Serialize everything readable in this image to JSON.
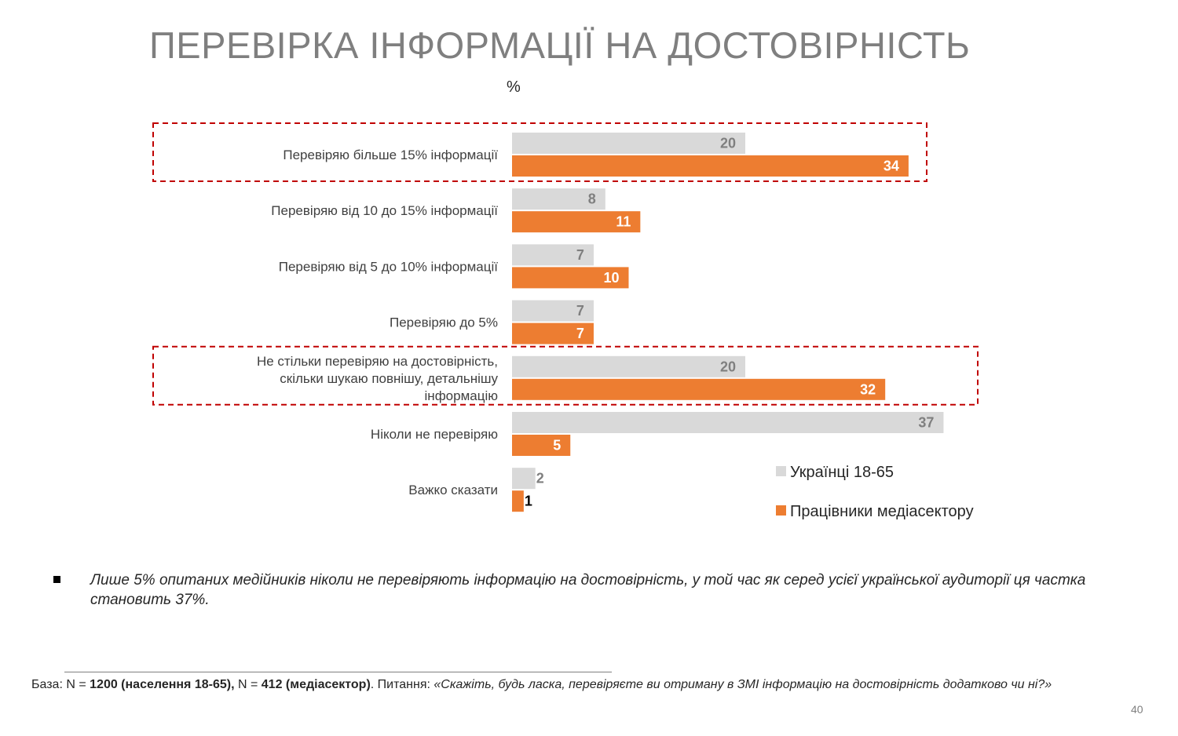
{
  "title": "ПЕРЕВІРКА ІНФОРМАЦІЇ НА ДОСТОВІРНІСТЬ",
  "unit": "%",
  "chart_data": {
    "type": "bar",
    "orientation": "horizontal",
    "categories": [
      [
        "Перевіряю більше 15% інформації"
      ],
      [
        "Перевіряю від 10 до 15% інформації"
      ],
      [
        "Перевіряю від 5 до 10% інформації"
      ],
      [
        "Перевіряю до 5%"
      ],
      [
        "Не стільки перевіряю на достовірність,",
        "скільки шукаю повнішу, детальнішу",
        "інформацію"
      ],
      [
        "Ніколи не перевіряю"
      ],
      [
        "Важко сказати"
      ]
    ],
    "series": [
      {
        "name": "Українці 18-65",
        "values": [
          20,
          8,
          7,
          7,
          20,
          37,
          2
        ],
        "color": "#d9d9d9",
        "label_color": "#7f7f7f"
      },
      {
        "name": "Працівники медіасектору",
        "values": [
          34,
          11,
          10,
          7,
          32,
          5,
          1
        ],
        "color": "#ed7d31",
        "label_color": "#ffffff"
      }
    ],
    "highlighted_categories": [
      0,
      4
    ],
    "highlight_color": "#c00000",
    "legend_position": "bottom-right",
    "grid": false
  },
  "note": "Лише 5% опитаних медійників ніколи не перевіряють інформацію на достовірність, у той час як серед усієї української аудиторії ця частка становить 37%.",
  "footnote": {
    "base_label": "База: N = ",
    "base_value1": "1200 (населення 18-65),",
    "base_mid": " N = ",
    "base_value2": "412 (медіасектор)",
    "question_label": ". Питання: ",
    "question": "«Скажіть, будь ласка, перевіряєте ви отриману в ЗМІ інформацію на достовірність додатково чи ні?»"
  },
  "page_number": "40"
}
